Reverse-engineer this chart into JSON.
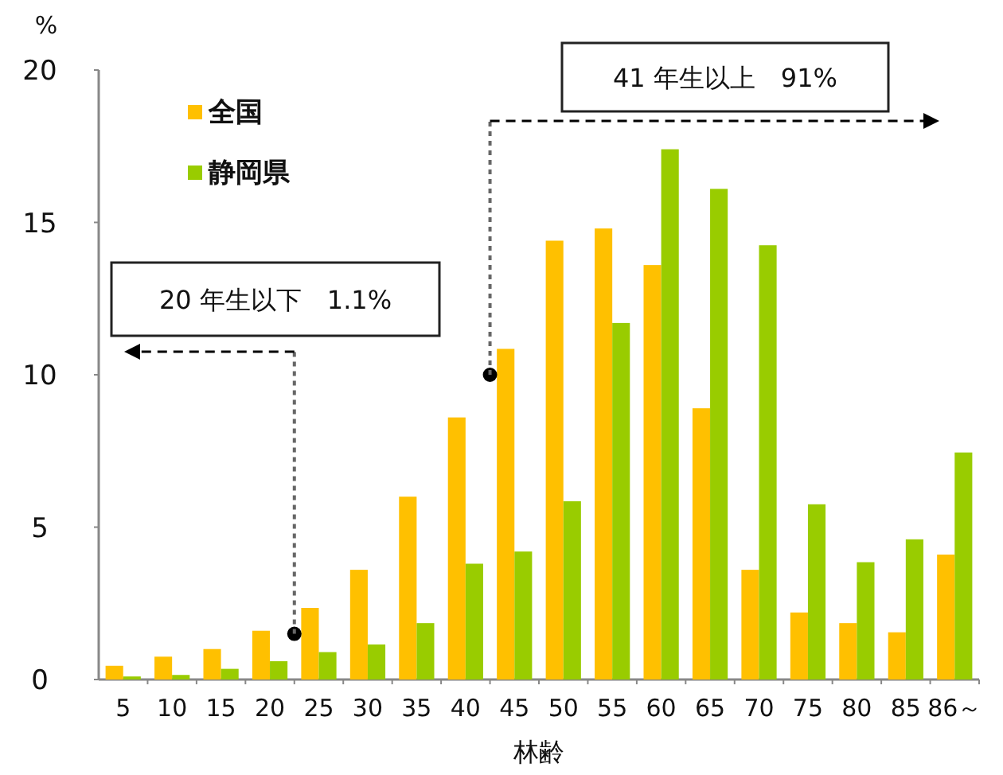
{
  "chart_data": {
    "type": "bar",
    "xlabel": "林齢",
    "ylabel": "%",
    "categories": [
      "5",
      "10",
      "15",
      "20",
      "25",
      "30",
      "35",
      "40",
      "45",
      "50",
      "55",
      "60",
      "65",
      "70",
      "75",
      "80",
      "85",
      "86～"
    ],
    "series": [
      {
        "name": "全国",
        "color": "#ffc000",
        "values": [
          0.45,
          0.75,
          1.0,
          1.6,
          2.35,
          3.6,
          6.0,
          8.6,
          10.85,
          14.4,
          14.8,
          13.6,
          8.9,
          3.6,
          2.2,
          1.85,
          1.55,
          4.1
        ]
      },
      {
        "name": "静岡県",
        "color": "#99cc00",
        "values": [
          0.1,
          0.15,
          0.35,
          0.6,
          0.9,
          1.15,
          1.85,
          3.8,
          4.2,
          5.85,
          11.7,
          17.4,
          16.1,
          14.25,
          5.75,
          3.85,
          4.6,
          7.45
        ]
      }
    ],
    "ylim": [
      0,
      20
    ],
    "yticks": [
      0,
      5,
      10,
      15,
      20
    ],
    "legend": "top left",
    "annotations": [
      "20 年生以下　1.1%",
      "41 年生以上　91%"
    ]
  }
}
